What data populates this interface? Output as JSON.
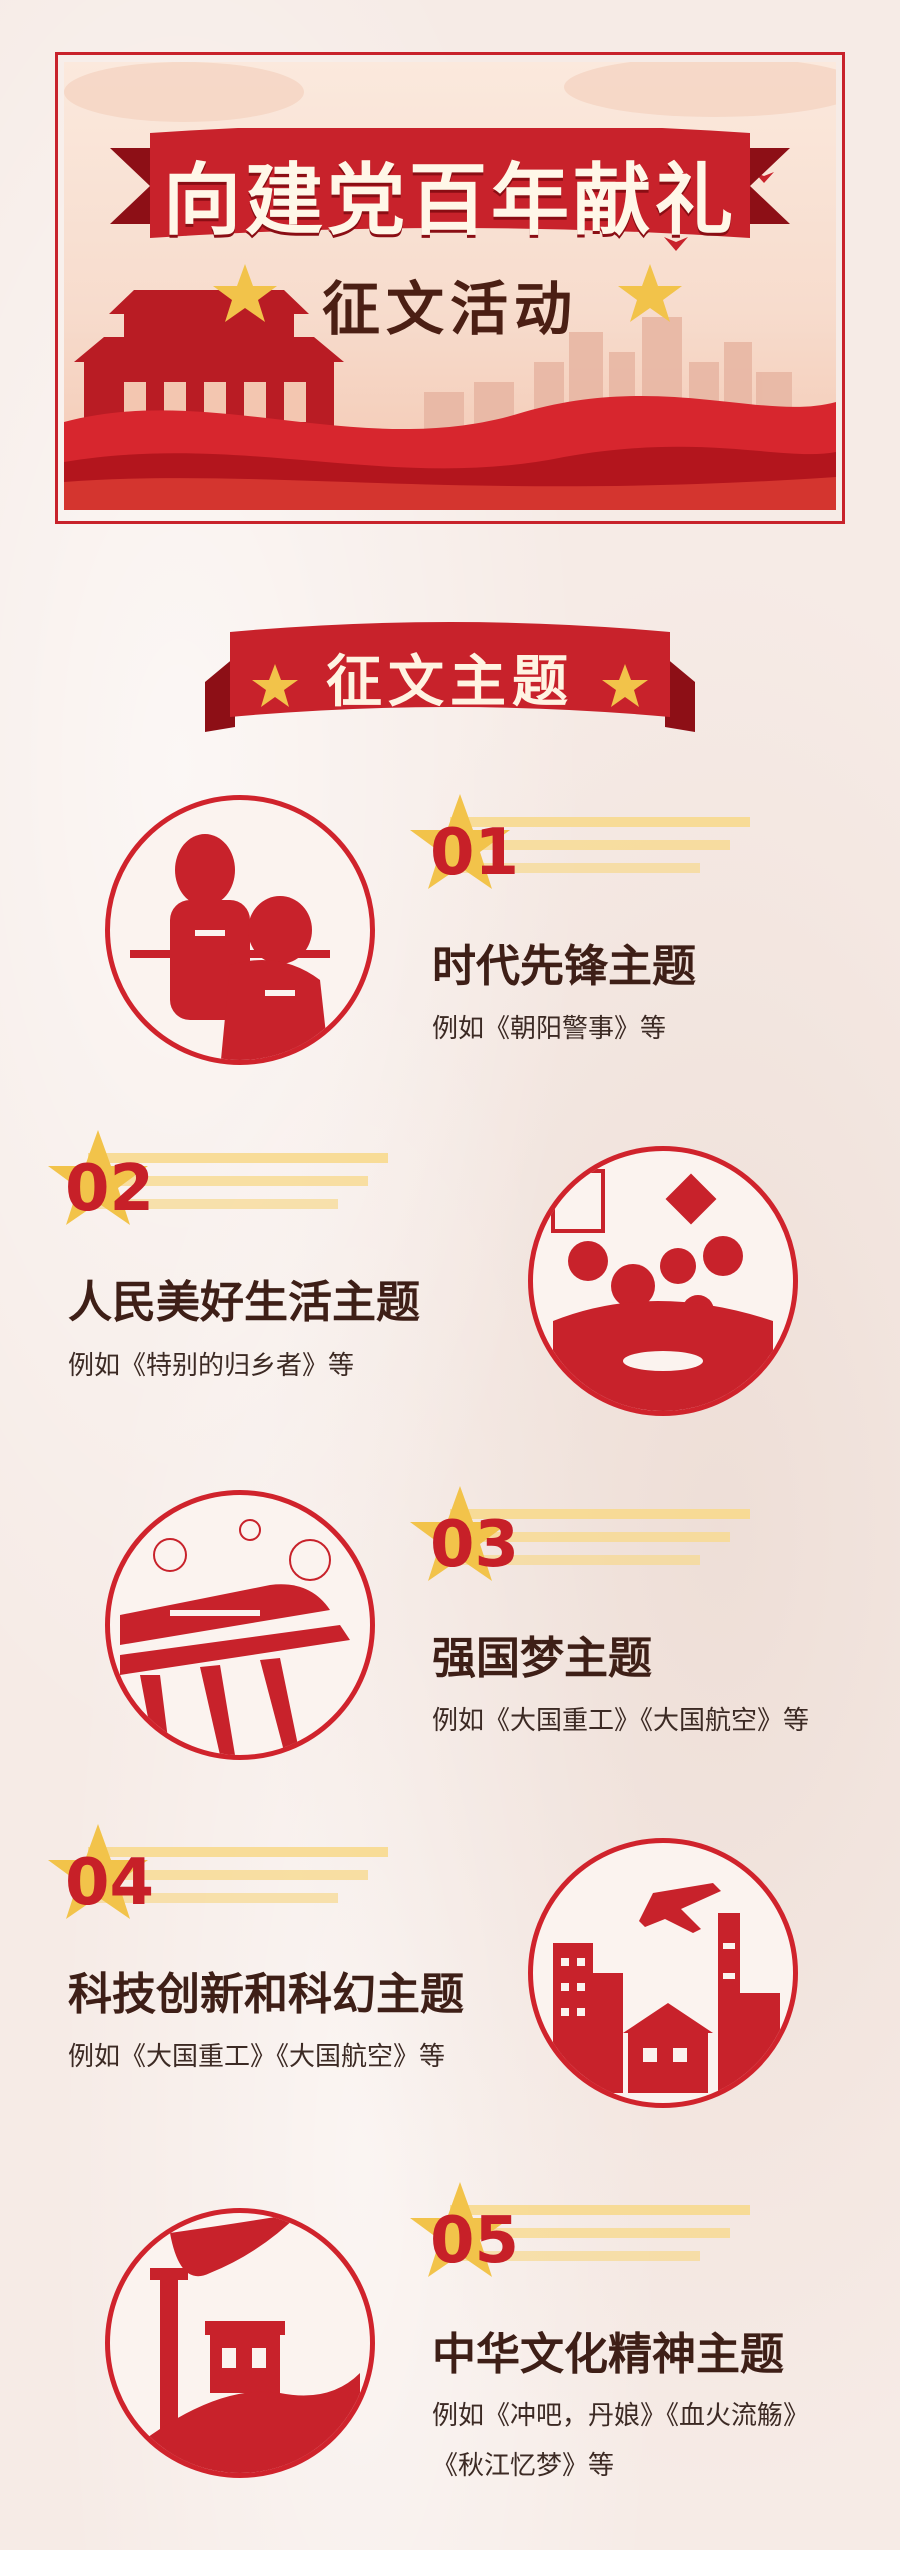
{
  "banner": {
    "title": "向建党百年献礼",
    "subtitle": "征文活动"
  },
  "section": {
    "heading": "征文主题"
  },
  "themes": [
    {
      "number": "01",
      "title": "时代先锋主题",
      "example": "例如《朝阳警事》等",
      "example2": ""
    },
    {
      "number": "02",
      "title": "人民美好生活主题",
      "example": "例如《特别的归乡者》等",
      "example2": ""
    },
    {
      "number": "03",
      "title": "强国梦主题",
      "example": "例如《大国重工》《大国航空》等",
      "example2": ""
    },
    {
      "number": "04",
      "title": "科技创新和科幻主题",
      "example": "例如《大国重工》《大国航空》等",
      "example2": ""
    },
    {
      "number": "05",
      "title": "中华文化精神主题",
      "example": "例如《冲吧，丹娘》《血火流觞》",
      "example2": "《秋江忆梦》等"
    }
  ],
  "illustration_icons": [
    "heroes-icon",
    "family-dinner-icon",
    "high-speed-train-icon",
    "city-airplane-icon",
    "great-wall-icon"
  ],
  "colors": {
    "primary_red": "#c8222b",
    "gold": "#f2c34a",
    "dark_text": "#3e1f17",
    "background": "#f6ebe6"
  }
}
